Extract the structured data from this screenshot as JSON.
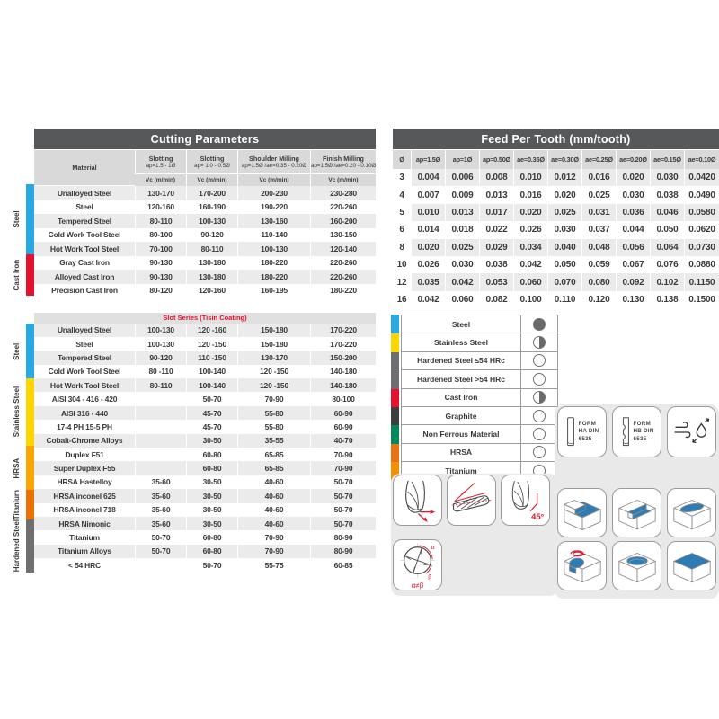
{
  "cutting_table": {
    "title": "Cutting Parameters",
    "material_header": "Material",
    "unit_label": "Vc (m/min)",
    "columns": [
      {
        "name": "Slotting",
        "range": "ap=1.5 - 1Ø"
      },
      {
        "name": "Slotting",
        "range": "ap= 1.0 - 0.5Ø"
      },
      {
        "name": "Shoulder Milling",
        "range": "ap=1.5Ø /ae=0.35 - 0.20Ø"
      },
      {
        "name": "Finish Milling",
        "range": "ap=1.5Ø /ae=0.20 - 0.10Ø"
      }
    ],
    "rows": [
      {
        "material": "Unalloyed Steel",
        "values": [
          "130-170",
          "170-200",
          "200-230",
          "230-280"
        ]
      },
      {
        "material": "Steel",
        "values": [
          "120-160",
          "160-190",
          "190-220",
          "220-260"
        ]
      },
      {
        "material": "Tempered Steel",
        "values": [
          "80-110",
          "100-130",
          "130-160",
          "160-200"
        ]
      },
      {
        "material": "Cold Work Tool Steel",
        "values": [
          "80-100",
          "90-120",
          "110-140",
          "130-150"
        ]
      },
      {
        "material": "Hot Work Tool Steel",
        "values": [
          "70-100",
          "80-110",
          "100-130",
          "120-140"
        ]
      },
      {
        "material": "Gray Cast Iron",
        "values": [
          "90-130",
          "130-180",
          "180-220",
          "220-260"
        ]
      },
      {
        "material": "Alloyed Cast Iron",
        "values": [
          "90-130",
          "130-180",
          "180-220",
          "220-260"
        ]
      },
      {
        "material": "Precision Cast Iron",
        "values": [
          "80-120",
          "120-160",
          "160-195",
          "180-220"
        ]
      }
    ],
    "groups": [
      {
        "label": "Steel",
        "color": "#29A9E1",
        "rows": 5
      },
      {
        "label": "Cast Iron",
        "color": "#E8112D",
        "rows": 3
      }
    ]
  },
  "slot_table": {
    "subtitle": "Slot Series (Tisin Coating)",
    "rows": [
      {
        "material": "Unalloyed Steel",
        "values": [
          "100-130",
          "120 -160",
          "150-180",
          "170-220"
        ]
      },
      {
        "material": "Steel",
        "values": [
          "100-130",
          "120 -150",
          "150-180",
          "170-220"
        ]
      },
      {
        "material": "Tempered Steel",
        "values": [
          "90-120",
          "110 -150",
          "130-170",
          "150-200"
        ]
      },
      {
        "material": "Cold Work Tool Steel",
        "values": [
          "80 -110",
          "100-140",
          "120 -150",
          "140-180"
        ]
      },
      {
        "material": "Hot Work Tool Steel",
        "values": [
          "80-110",
          "100-140",
          "120 -150",
          "140-180"
        ]
      },
      {
        "material": "AISI 304 - 416 - 420",
        "values": [
          "",
          "50-70",
          "70-90",
          "80-100"
        ]
      },
      {
        "material": "AISI 316 - 440",
        "values": [
          "",
          "45-70",
          "55-80",
          "60-90"
        ]
      },
      {
        "material": "17-4 PH 15-5 PH",
        "values": [
          "",
          "45-70",
          "55-80",
          "60-90"
        ]
      },
      {
        "material": "Cobalt-Chrome Alloys",
        "values": [
          "",
          "30-50",
          "35-55",
          "40-70"
        ]
      },
      {
        "material": "Duplex F51",
        "values": [
          "",
          "60-80",
          "65-85",
          "70-90"
        ]
      },
      {
        "material": "Super Duplex F55",
        "values": [
          "",
          "60-80",
          "65-85",
          "70-90"
        ]
      },
      {
        "material": "HRSA Hastelloy",
        "values": [
          "35-60",
          "30-50",
          "40-60",
          "50-70"
        ]
      },
      {
        "material": "HRSA inconel 625",
        "values": [
          "35-60",
          "30-50",
          "40-60",
          "50-70"
        ]
      },
      {
        "material": "HRSA inconel 718",
        "values": [
          "35-60",
          "30-50",
          "40-60",
          "50-70"
        ]
      },
      {
        "material": "HRSA Nimonic",
        "values": [
          "35-60",
          "30-50",
          "40-60",
          "50-70"
        ]
      },
      {
        "material": "Titanium",
        "values": [
          "50-70",
          "60-80",
          "70-90",
          "80-90"
        ]
      },
      {
        "material": "Titanium Alloys",
        "values": [
          "50-70",
          "60-80",
          "70-90",
          "80-90"
        ]
      },
      {
        "material": "< 54 HRC",
        "values": [
          "",
          "50-70",
          "55-75",
          "60-85"
        ]
      }
    ],
    "groups": [
      {
        "label": "Steel",
        "color": "#29A9E1",
        "rows": 5
      },
      {
        "label": "Stainless Steel",
        "color": "#FFD500",
        "rows": 6
      },
      {
        "label": "HRSA",
        "color": "#F6A800",
        "rows": 4
      },
      {
        "label": "Titanium",
        "color": "#EC7100",
        "rows": 2
      },
      {
        "label": "Hardened Steel",
        "color": "#6E6F71",
        "rows": 1
      }
    ]
  },
  "feed_table": {
    "title": "Feed Per Tooth (mm/tooth)",
    "headers": [
      "Ø",
      "ap=1.5Ø",
      "ap=1Ø",
      "ap=0.50Ø",
      "ae=0.35Ø",
      "ae=0.30Ø",
      "ae=0.25Ø",
      "ae=0.20Ø",
      "ae=0.15Ø",
      "ae=0.10Ø"
    ],
    "rows": [
      {
        "d": "3",
        "values": [
          "0.004",
          "0.006",
          "0.008",
          "0.010",
          "0.012",
          "0.016",
          "0.020",
          "0.030",
          "0.0420"
        ]
      },
      {
        "d": "4",
        "values": [
          "0.007",
          "0.009",
          "0.013",
          "0.016",
          "0.020",
          "0.025",
          "0.030",
          "0.038",
          "0.0490"
        ]
      },
      {
        "d": "5",
        "values": [
          "0.010",
          "0.013",
          "0.017",
          "0.020",
          "0.025",
          "0.031",
          "0.036",
          "0.046",
          "0.0580"
        ]
      },
      {
        "d": "6",
        "values": [
          "0.014",
          "0.018",
          "0.022",
          "0.026",
          "0.030",
          "0.037",
          "0.044",
          "0.050",
          "0.0620"
        ]
      },
      {
        "d": "8",
        "values": [
          "0.020",
          "0.025",
          "0.029",
          "0.034",
          "0.040",
          "0.048",
          "0.056",
          "0.064",
          "0.0730"
        ]
      },
      {
        "d": "10",
        "values": [
          "0.026",
          "0.030",
          "0.038",
          "0.042",
          "0.050",
          "0.059",
          "0.067",
          "0.076",
          "0.0880"
        ]
      },
      {
        "d": "12",
        "values": [
          "0.035",
          "0.042",
          "0.053",
          "0.060",
          "0.070",
          "0.080",
          "0.092",
          "0.102",
          "0.1150"
        ]
      },
      {
        "d": "16",
        "values": [
          "0.042",
          "0.060",
          "0.082",
          "0.100",
          "0.110",
          "0.120",
          "0.130",
          "0.138",
          "0.1500"
        ]
      }
    ]
  },
  "legend": {
    "items": [
      {
        "label": "Steel",
        "color": "#29A9E1",
        "fill": "full"
      },
      {
        "label": "Stainless Steel",
        "color": "#FFD500",
        "fill": "half"
      },
      {
        "label": "Hardened Steel ≤54 HRc",
        "color": "#6D6E70",
        "fill": "empty"
      },
      {
        "label": "Hardened Steel >54 HRc",
        "color": "#6D6E70",
        "fill": "empty"
      },
      {
        "label": "Cast Iron",
        "color": "#E8112D",
        "fill": "half"
      },
      {
        "label": "Graphite",
        "color": "#3E3E3D",
        "fill": "empty"
      },
      {
        "label": "Non Ferrous Material",
        "color": "#00885D",
        "fill": "empty"
      },
      {
        "label": "HRSA",
        "color": "#E97212",
        "fill": "empty"
      },
      {
        "label": "Titanium",
        "color": "#F39200",
        "fill": "empty"
      }
    ],
    "fill_glyphs": {
      "full": "●",
      "half": "◑",
      "empty": "○"
    }
  },
  "badges": {
    "form_ha": {
      "lines": [
        "FORM",
        "HA DIN",
        "6535"
      ]
    },
    "form_hb": {
      "lines": [
        "FORM",
        "HB DIN",
        "6535"
      ]
    },
    "chamfer_angle": "45°",
    "alpha": "α",
    "beta": "β",
    "alpha_beta": "α≠β"
  },
  "icons": {
    "shank_ha": "straight-shank-icon",
    "shank_hb": "whistle-notch-shank-icon",
    "air_coolant": "air-blast-coolant-icon",
    "end_mill_corner": "end-mill-corner-radius-icon",
    "end_mill_helix": "end-mill-helix-angle-icon",
    "end_mill_chamfer": "end-mill-45deg-chamfer-icon",
    "end_mill_end_view": "unequal-flute-spacing-icon",
    "operations": [
      "shoulder-milling",
      "slot-milling",
      "closed-slot-milling",
      "helical-interpolation",
      "pocket-milling",
      "face-milling"
    ]
  },
  "colors": {
    "header_bar": "#57585A",
    "stripe": "#EBEBEB",
    "accent_red": "#E8112D",
    "machined_blue": "#2F7CB5"
  }
}
